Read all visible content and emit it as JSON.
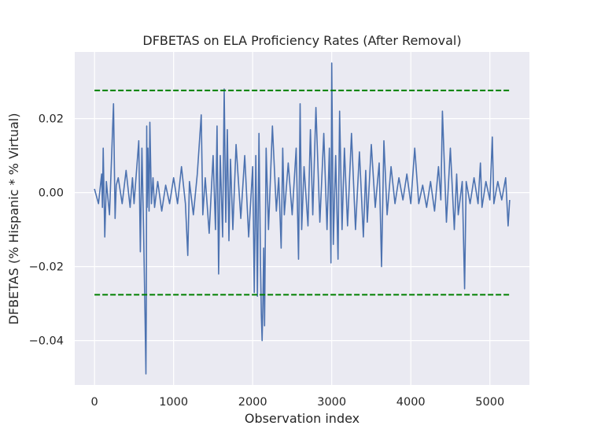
{
  "chart_data": {
    "type": "line",
    "title": "DFBETAS on ELA Proficiency Rates (After Removal)",
    "xlabel": "Observation index",
    "ylabel": "DFBETAS (% Hispanic * % Virtual)",
    "xlim": [
      -250,
      5500
    ],
    "ylim": [
      -0.052,
      0.038
    ],
    "grid": true,
    "background": "#eaeaf2",
    "x_ticks": [
      {
        "value": 0,
        "label": "0"
      },
      {
        "value": 1000,
        "label": "1000"
      },
      {
        "value": 2000,
        "label": "2000"
      },
      {
        "value": 3000,
        "label": "3000"
      },
      {
        "value": 4000,
        "label": "4000"
      },
      {
        "value": 5000,
        "label": "5000"
      }
    ],
    "y_ticks": [
      {
        "value": -0.04,
        "label": "−0.04"
      },
      {
        "value": -0.02,
        "label": "−0.02"
      },
      {
        "value": 0.0,
        "label": "0.00"
      },
      {
        "value": 0.02,
        "label": "0.02"
      }
    ],
    "series": [
      {
        "color": "#4c72b0",
        "x": [
          0,
          50,
          90,
          100,
          110,
          130,
          150,
          190,
          240,
          260,
          275,
          300,
          350,
          400,
          450,
          480,
          500,
          560,
          580,
          600,
          620,
          640,
          650,
          655,
          660,
          665,
          675,
          690,
          700,
          720,
          740,
          760,
          800,
          850,
          900,
          950,
          1000,
          1050,
          1100,
          1150,
          1180,
          1200,
          1250,
          1300,
          1350,
          1370,
          1400,
          1450,
          1500,
          1530,
          1550,
          1570,
          1590,
          1620,
          1640,
          1660,
          1680,
          1700,
          1720,
          1750,
          1790,
          1850,
          1900,
          1950,
          2000,
          2020,
          2040,
          2060,
          2080,
          2100,
          2110,
          2120,
          2130,
          2140,
          2150,
          2170,
          2200,
          2250,
          2300,
          2330,
          2360,
          2380,
          2400,
          2450,
          2500,
          2550,
          2580,
          2600,
          2620,
          2650,
          2700,
          2730,
          2760,
          2800,
          2850,
          2900,
          2940,
          2970,
          2990,
          3000,
          3020,
          3050,
          3080,
          3100,
          3130,
          3160,
          3200,
          3250,
          3300,
          3350,
          3400,
          3430,
          3450,
          3500,
          3550,
          3600,
          3630,
          3660,
          3700,
          3750,
          3800,
          3850,
          3900,
          3950,
          4000,
          4050,
          4100,
          4150,
          4200,
          4250,
          4300,
          4350,
          4380,
          4400,
          4450,
          4500,
          4550,
          4580,
          4600,
          4650,
          4680,
          4700,
          4750,
          4800,
          4850,
          4880,
          4900,
          4950,
          5000,
          5030,
          5050,
          5100,
          5150,
          5200,
          5230,
          5250
        ],
        "y": [
          0.001,
          -0.003,
          0.005,
          -0.004,
          0.012,
          -0.012,
          0.003,
          -0.006,
          0.024,
          -0.007,
          0.002,
          0.004,
          -0.003,
          0.006,
          -0.004,
          0.004,
          -0.003,
          0.014,
          -0.016,
          0.012,
          -0.01,
          -0.035,
          -0.049,
          -0.03,
          0.018,
          -0.004,
          0.012,
          -0.005,
          0.019,
          -0.003,
          0.004,
          -0.004,
          0.003,
          -0.005,
          0.002,
          -0.003,
          0.004,
          -0.003,
          0.007,
          -0.003,
          -0.017,
          0.003,
          -0.006,
          0.005,
          0.021,
          -0.006,
          0.004,
          -0.011,
          0.01,
          -0.01,
          0.018,
          -0.022,
          0.01,
          -0.012,
          0.028,
          -0.008,
          0.017,
          -0.013,
          0.009,
          -0.01,
          0.013,
          -0.007,
          0.01,
          -0.012,
          0.007,
          -0.027,
          0.01,
          -0.028,
          0.016,
          -0.02,
          -0.033,
          -0.04,
          -0.03,
          -0.015,
          -0.036,
          0.012,
          -0.01,
          0.018,
          -0.005,
          0.004,
          -0.015,
          0.012,
          -0.006,
          0.008,
          -0.006,
          0.012,
          -0.018,
          0.024,
          -0.01,
          0.007,
          -0.009,
          0.017,
          -0.006,
          0.023,
          -0.008,
          0.016,
          -0.01,
          0.012,
          -0.019,
          0.035,
          -0.014,
          0.01,
          -0.018,
          0.022,
          -0.01,
          0.012,
          -0.009,
          0.016,
          -0.01,
          0.011,
          -0.012,
          0.006,
          -0.008,
          0.013,
          -0.004,
          0.008,
          -0.02,
          0.014,
          -0.006,
          0.007,
          -0.003,
          0.004,
          -0.002,
          0.005,
          -0.003,
          0.012,
          -0.003,
          0.002,
          -0.004,
          0.003,
          -0.005,
          0.007,
          -0.002,
          0.022,
          -0.008,
          0.012,
          -0.01,
          0.005,
          -0.006,
          0.003,
          -0.026,
          0.003,
          -0.003,
          0.004,
          -0.003,
          0.008,
          -0.004,
          0.003,
          -0.002,
          0.015,
          -0.003,
          0.003,
          -0.002,
          0.004,
          -0.009,
          -0.002
        ]
      }
    ],
    "threshold_lines": [
      {
        "y": 0.0276,
        "x_from": 0,
        "x_to": 5260,
        "color": "#008000",
        "style": "dashed"
      },
      {
        "y": -0.0276,
        "x_from": 0,
        "x_to": 5260,
        "color": "#008000",
        "style": "dashed"
      }
    ]
  }
}
